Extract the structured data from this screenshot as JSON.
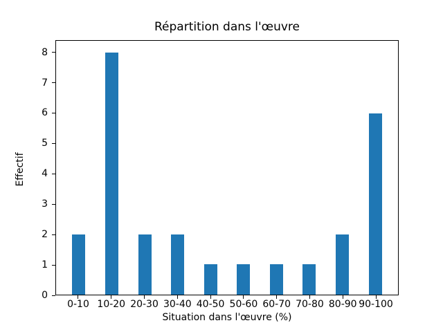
{
  "chart_data": {
    "type": "bar",
    "title": "Répartition dans l'œuvre",
    "xlabel": "Situation dans l'œuvre (%)",
    "ylabel": "Effectif",
    "categories": [
      "0-10",
      "10-20",
      "20-30",
      "30-40",
      "40-50",
      "50-60",
      "60-70",
      "70-80",
      "80-90",
      "90-100"
    ],
    "values": [
      2,
      8,
      2,
      2,
      1,
      1,
      1,
      1,
      2,
      6
    ],
    "yticks": [
      0,
      1,
      2,
      3,
      4,
      5,
      6,
      7,
      8
    ],
    "ylim": [
      0,
      8.4
    ],
    "x_edge_margin_units": 0.69,
    "bar_width_units": 0.4,
    "bar_color": "#1f77b4",
    "axis_color": "#000000",
    "background_color": "#ffffff",
    "grid": false,
    "legend": null
  }
}
